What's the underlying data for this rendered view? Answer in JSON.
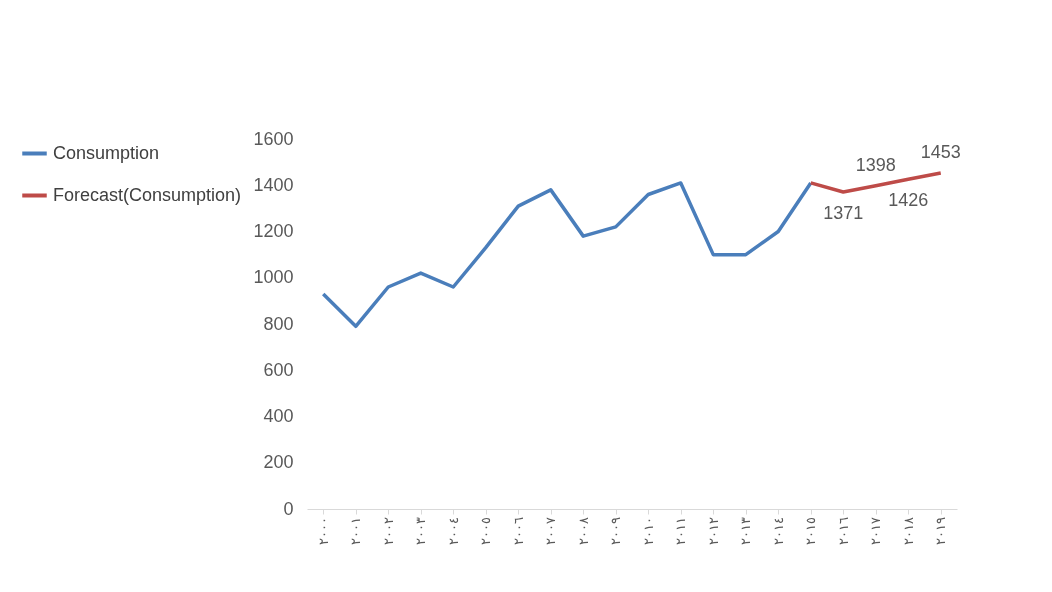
{
  "chart_data": {
    "type": "line",
    "categories": [
      "٢٠٠٠",
      "٢٠٠١",
      "٢٠٠٢",
      "٢٠٠٣",
      "٢٠٠٤",
      "٢٠٠٥",
      "٢٠٠٦",
      "٢٠٠٧",
      "٢٠٠٨",
      "٢٠٠٩",
      "٢٠١٠",
      "٢٠١١",
      "٢٠١٢",
      "٢٠١٣",
      "٢٠١٤",
      "٢٠١٥",
      "٢٠١٦",
      "٢٠١٧",
      "٢٠١٨",
      "٢٠١٩"
    ],
    "series": [
      {
        "name": "Consumption",
        "color": "#4a7ebb",
        "values": [
          930,
          790,
          960,
          1020,
          960,
          1130,
          1310,
          1380,
          1180,
          1220,
          1360,
          1410,
          1100,
          1100,
          1200,
          1410,
          null,
          null,
          null,
          null
        ]
      },
      {
        "name": "Forecast(Consumption)",
        "color": "#be4b48",
        "values": [
          null,
          null,
          null,
          null,
          null,
          null,
          null,
          null,
          null,
          null,
          null,
          null,
          null,
          null,
          null,
          1410,
          1371,
          1398,
          1426,
          1453
        ],
        "value_labels": [
          null,
          null,
          null,
          null,
          null,
          null,
          null,
          null,
          null,
          null,
          null,
          null,
          null,
          null,
          null,
          null,
          "1371",
          "1398",
          "1426",
          "1453"
        ]
      }
    ],
    "ylim": [
      0,
      1600
    ],
    "yticks": [
      0,
      200,
      400,
      600,
      800,
      1000,
      1200,
      1400,
      1600
    ],
    "grid": false,
    "legend": "left",
    "line_style": "solid",
    "marker": "none"
  }
}
